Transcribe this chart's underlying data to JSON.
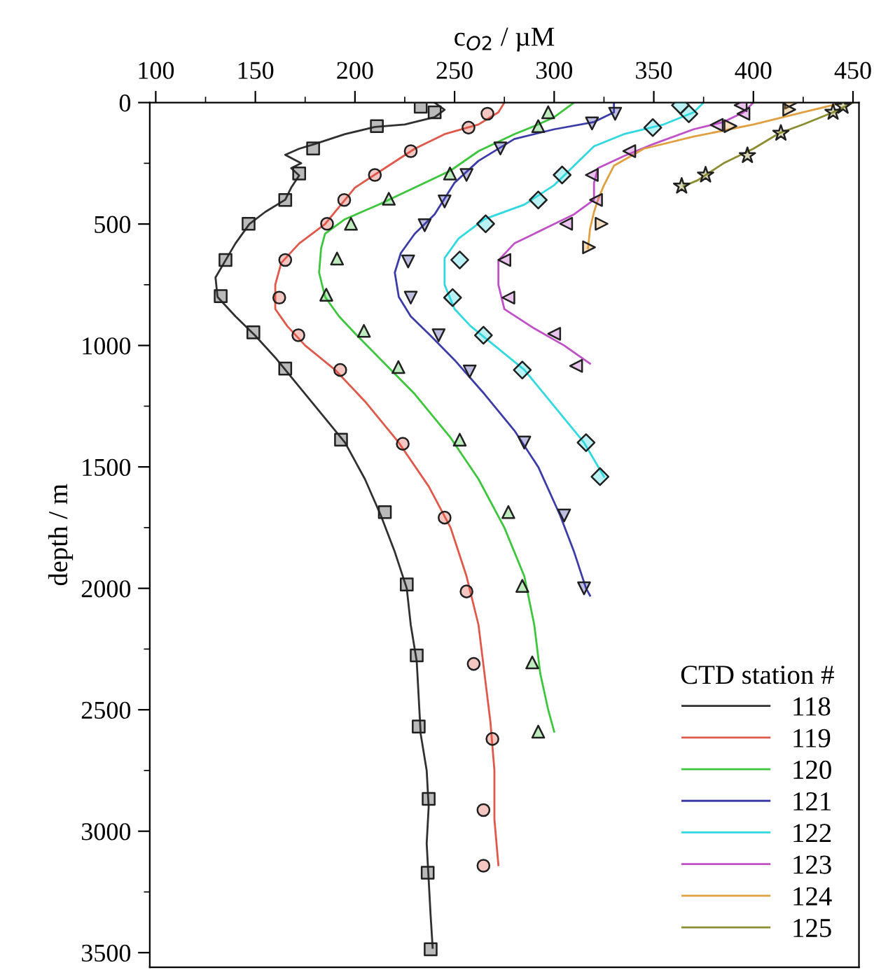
{
  "chart_data": {
    "type": "line",
    "xlabel": "c$_{O2}$ / µM",
    "ylabel": "depth / m",
    "legend_title": "CTD station #",
    "legend": "bottom right",
    "xlim": [
      97,
      453
    ],
    "ylim": [
      3560,
      0
    ],
    "xticks": [
      100,
      150,
      200,
      250,
      300,
      350,
      400,
      450
    ],
    "yticks": [
      0,
      500,
      1000,
      1500,
      2000,
      2500,
      3000,
      3500
    ],
    "grid": false,
    "line_style": "solid",
    "series": [
      {
        "name": "118",
        "color": "#303030",
        "marker": "none",
        "x": [
          240,
          245,
          240,
          225,
          210,
          195,
          180,
          172,
          165,
          173,
          168,
          172,
          168,
          165,
          155,
          147,
          140,
          135,
          130,
          131,
          140,
          150,
          160,
          170,
          185,
          195,
          205,
          213,
          220,
          226,
          228,
          231,
          232,
          233,
          236,
          237,
          236,
          237,
          238,
          239
        ],
        "values": [
          0,
          30,
          60,
          90,
          100,
          130,
          170,
          190,
          215,
          250,
          270,
          300,
          350,
          400,
          450,
          500,
          580,
          650,
          720,
          800,
          880,
          960,
          1050,
          1150,
          1300,
          1400,
          1550,
          1700,
          1850,
          2000,
          2150,
          2300,
          2450,
          2600,
          2750,
          2900,
          3050,
          3200,
          3350,
          3480
        ]
      },
      {
        "name": "119",
        "color": "#e0584a",
        "marker": "none",
        "x": [
          275,
          272,
          262,
          245,
          230,
          215,
          200,
          192,
          185,
          172,
          163,
          160,
          160,
          166,
          175,
          190,
          205,
          222,
          237,
          248,
          256,
          262,
          265,
          268,
          270,
          270,
          272
        ],
        "values": [
          0,
          40,
          90,
          130,
          190,
          270,
          350,
          430,
          500,
          580,
          660,
          750,
          850,
          920,
          1000,
          1100,
          1230,
          1400,
          1580,
          1750,
          1950,
          2150,
          2350,
          2550,
          2750,
          2950,
          3140
        ]
      },
      {
        "name": "120",
        "color": "#3cc63c",
        "marker": "none",
        "x": [
          310,
          305,
          300,
          292,
          280,
          262,
          248,
          230,
          212,
          195,
          185,
          183,
          182,
          185,
          192,
          200,
          212,
          230,
          248,
          262,
          275,
          285,
          290,
          293,
          297,
          300
        ],
        "values": [
          0,
          30,
          60,
          90,
          130,
          200,
          280,
          350,
          420,
          480,
          540,
          600,
          700,
          800,
          880,
          950,
          1050,
          1200,
          1380,
          1550,
          1750,
          1950,
          2150,
          2350,
          2500,
          2590
        ]
      },
      {
        "name": "121",
        "color": "#3c3ca8",
        "marker": "none",
        "x": [
          330,
          330,
          320,
          300,
          280,
          262,
          250,
          240,
          230,
          223,
          220,
          222,
          228,
          238,
          250,
          265,
          280,
          292,
          303,
          310,
          316,
          318
        ],
        "values": [
          0,
          40,
          80,
          110,
          150,
          240,
          330,
          460,
          540,
          620,
          700,
          800,
          880,
          960,
          1060,
          1200,
          1350,
          1500,
          1700,
          1850,
          2000,
          2030
        ]
      },
      {
        "name": "122",
        "color": "#30d8e0",
        "marker": "none",
        "x": [
          375,
          370,
          355,
          335,
          320,
          310,
          300,
          285,
          265,
          252,
          245,
          245,
          250,
          258,
          270,
          285,
          300,
          315,
          325
        ],
        "values": [
          0,
          40,
          90,
          130,
          180,
          260,
          340,
          420,
          480,
          560,
          640,
          750,
          850,
          920,
          1000,
          1100,
          1250,
          1400,
          1540
        ]
      },
      {
        "name": "123",
        "color": "#c050c8",
        "marker": "none",
        "x": [
          400,
          395,
          385,
          370,
          350,
          335,
          322,
          320,
          320,
          310,
          295,
          280,
          272,
          272,
          275,
          290,
          305,
          318
        ],
        "values": [
          0,
          40,
          80,
          110,
          170,
          220,
          270,
          330,
          400,
          460,
          520,
          580,
          650,
          750,
          850,
          930,
          1000,
          1075
        ]
      },
      {
        "name": "124",
        "color": "#e0a040",
        "marker": "none",
        "x": [
          445,
          425,
          400,
          370,
          345,
          330,
          325,
          322,
          320,
          318,
          317
        ],
        "values": [
          0,
          40,
          90,
          140,
          190,
          260,
          340,
          400,
          450,
          520,
          600
        ]
      },
      {
        "name": "125",
        "color": "#8c8c30",
        "marker": "none",
        "x": [
          450,
          440,
          425,
          413,
          400,
          385,
          372,
          365
        ],
        "values": [
          0,
          40,
          90,
          126,
          190,
          250,
          320,
          344
        ]
      },
      {
        "type": "scatter",
        "color": "#303030",
        "marker": "square",
        "x": [
          233,
          240,
          211,
          179,
          172,
          165,
          146.6,
          135,
          132.6,
          149,
          165,
          193,
          215,
          226,
          231,
          232,
          237,
          236.5,
          238
        ],
        "values": [
          17,
          40,
          97,
          189,
          292,
          401,
          499,
          648,
          797,
          946,
          1095,
          1388,
          1686,
          1984,
          2276,
          2569,
          2867,
          3171,
          3486
        ]
      },
      {
        "type": "scatter",
        "color": "#e0584a",
        "marker": "circle",
        "x": [
          266.5,
          257,
          228,
          210,
          194.6,
          186,
          165,
          162,
          171.6,
          192.6,
          224,
          245,
          256,
          259.6,
          269,
          264.5,
          264.5
        ],
        "values": [
          46,
          103,
          200,
          298,
          401,
          499,
          648,
          803,
          958,
          1101,
          1405,
          1709,
          2013,
          2311,
          2620,
          2913,
          3142
        ]
      },
      {
        "type": "scatter",
        "color": "#3cc63c",
        "marker": "triangle",
        "x": [
          297,
          292,
          247.7,
          217,
          198,
          191,
          185.6,
          204.5,
          221.8,
          252.6,
          277,
          284,
          289,
          292
        ],
        "values": [
          40,
          97,
          292,
          396,
          499,
          642,
          791,
          940,
          1089,
          1388,
          1686,
          1990,
          2305,
          2590
        ]
      },
      {
        "type": "scatter",
        "color": "#3c3ca8",
        "marker": "triangle_down",
        "x": [
          330.6,
          319,
          273,
          256,
          245,
          235,
          226.7,
          228,
          242,
          257.6,
          285,
          305,
          315
        ],
        "values": [
          46,
          86,
          189,
          298,
          407,
          505,
          654,
          803,
          958,
          1107,
          1400,
          1700,
          2000
        ]
      },
      {
        "type": "scatter",
        "color": "#30d8e0",
        "marker": "diamond",
        "x": [
          363.4,
          367.6,
          349.5,
          304,
          292,
          265.6,
          252.6,
          249,
          264.5,
          284,
          316,
          323
        ],
        "values": [
          11,
          46,
          103,
          298,
          401,
          499,
          648,
          803,
          958,
          1101,
          1400,
          1540
        ]
      },
      {
        "type": "scatter",
        "color": "#c050c8",
        "marker": "triangle_left",
        "x": [
          393.6,
          395,
          381.6,
          337.7,
          318.9,
          321,
          306,
          275,
          277,
          300,
          311
        ],
        "values": [
          11,
          46,
          92,
          200,
          298,
          401,
          499,
          648,
          803,
          952,
          1084
        ]
      },
      {
        "type": "scatter",
        "color": "#e0a040",
        "marker": "triangle_right",
        "x": [
          419,
          418,
          388.5,
          323.8,
          317.5
        ],
        "values": [
          0,
          29,
          97,
          499,
          596
        ]
      },
      {
        "type": "scatter",
        "color": "#8c8c30",
        "marker": "star",
        "x": [
          445,
          440,
          413.8,
          397,
          376,
          364
        ],
        "values": [
          15,
          40,
          126,
          218,
          298,
          344
        ]
      }
    ]
  }
}
